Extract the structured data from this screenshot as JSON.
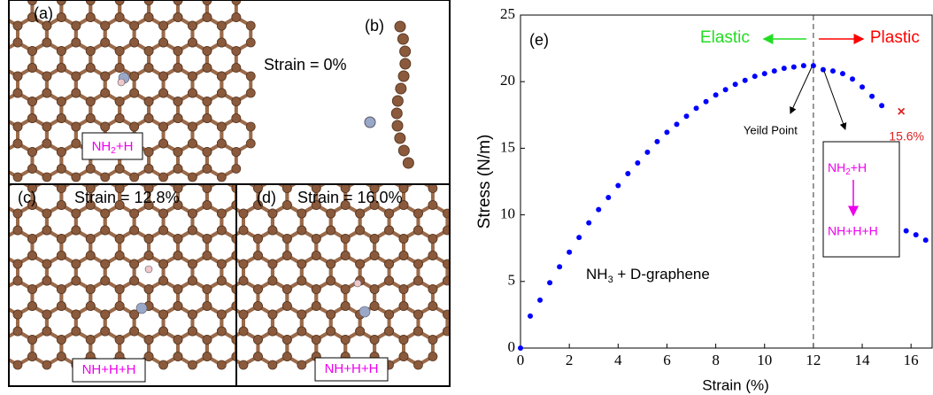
{
  "panels": {
    "a": {
      "label": "(a)",
      "species": {
        "main": "NH",
        "sub": "2",
        "rest": "+H"
      }
    },
    "b": {
      "label": "(b)",
      "strain": "Strain = 0%"
    },
    "c": {
      "label": "(c)",
      "strain": "Strain = 12.8%",
      "species": "NH+H+H"
    },
    "d": {
      "label": "(d)",
      "strain": "Strain = 16.0%",
      "species": "NH+H+H"
    }
  },
  "chart_data": {
    "type": "scatter",
    "panel_label": "(e)",
    "x_label": "Strain (%)",
    "y_label": "Stress (N/m)",
    "xlim": [
      0,
      16.9
    ],
    "ylim": [
      0,
      25
    ],
    "xticks": [
      0,
      2,
      4,
      6,
      8,
      10,
      12,
      14,
      16
    ],
    "yticks": [
      0,
      5,
      10,
      15,
      20,
      25
    ],
    "series": [
      {
        "color": "#0000ff",
        "x": [
          0,
          0.4,
          0.8,
          1.2,
          1.6,
          2.0,
          2.4,
          2.8,
          3.2,
          3.6,
          4.0,
          4.4,
          4.8,
          5.2,
          5.6,
          6.0,
          6.4,
          6.8,
          7.2,
          7.6,
          8.0,
          8.4,
          8.8,
          9.2,
          9.6,
          10.0,
          10.4,
          10.8,
          11.2,
          11.6,
          12.0,
          12.4,
          12.8,
          13.2,
          13.6,
          14.0,
          14.4,
          14.8,
          15.8,
          16.2,
          16.6
        ],
        "values": [
          0,
          2.4,
          3.6,
          4.9,
          6.1,
          7.2,
          8.3,
          9.4,
          10.4,
          11.3,
          12.2,
          13.1,
          13.9,
          14.7,
          15.5,
          16.2,
          16.8,
          17.4,
          18.0,
          18.5,
          19.0,
          19.4,
          19.8,
          20.1,
          20.4,
          20.6,
          20.8,
          21.0,
          21.1,
          21.2,
          21.2,
          20.9,
          20.8,
          20.6,
          20.2,
          19.6,
          18.9,
          18.2,
          8.8,
          8.5,
          8.1
        ]
      }
    ],
    "vline": 12,
    "elastic": {
      "text": "Elastic",
      "color": "#22dd22"
    },
    "plastic": {
      "text": "Plastic",
      "color": "#ff0000"
    },
    "yield_label": "Yeild Point",
    "fracture": {
      "x": 15.6,
      "y": 17.7,
      "label": "15.6%",
      "color": "#dd2222"
    },
    "system_label": {
      "main": "NH",
      "sub": "3",
      "rest": " + D-graphene"
    },
    "transition": {
      "from": {
        "main": "NH",
        "sub": "2",
        "rest": "+H"
      },
      "to": "NH+H+H",
      "color": "#ee00ee"
    }
  }
}
